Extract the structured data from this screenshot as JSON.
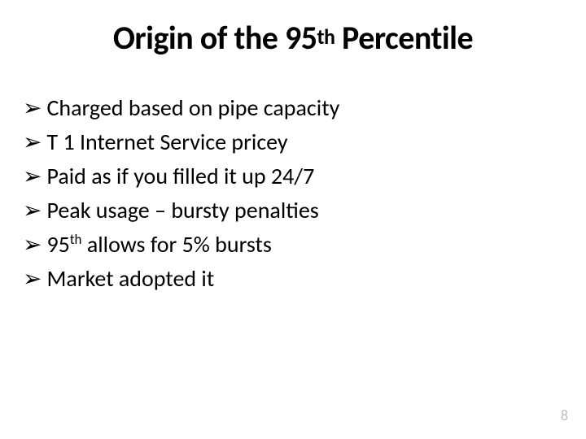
{
  "title": {
    "pre": "Origin of the 95",
    "sup": "th",
    "post": " Percentile"
  },
  "bullet_marker": "➢",
  "bullets": [
    {
      "text": "Charged based on pipe capacity"
    },
    {
      "text": "T 1 Internet Service pricey"
    },
    {
      "text": "Paid as if you filled it up 24/7"
    },
    {
      "text": "Peak usage – bursty penalties"
    },
    {
      "pre": "95",
      "sup": "th",
      "post": " allows for 5% bursts"
    },
    {
      "text": "Market adopted it"
    }
  ],
  "page_number": "8",
  "colors": {
    "text": "#000000",
    "background": "#ffffff",
    "pagenum": "#bfbfbf"
  },
  "fonts": {
    "title_size_pt": 40,
    "bullet_size_pt": 28
  }
}
